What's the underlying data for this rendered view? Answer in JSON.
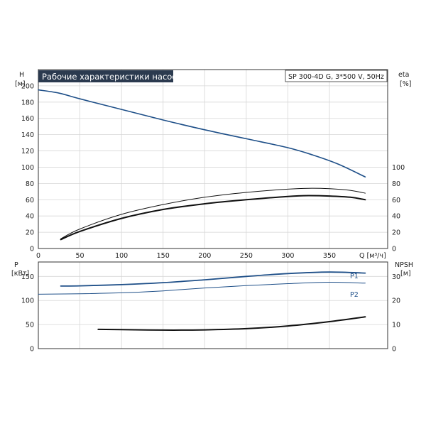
{
  "top_chart": {
    "title": "Рабочие характеристики насоса",
    "model": "SP 300-4D G, 3*500 V, 50Hz",
    "left_axis": {
      "label": "H",
      "unit": "[м]",
      "ticks": [
        0,
        20,
        40,
        60,
        80,
        100,
        120,
        140,
        160,
        180,
        200
      ]
    },
    "right_axis": {
      "label": "eta",
      "unit": "[%]",
      "ticks": [
        0,
        20,
        40,
        60,
        80,
        100
      ]
    },
    "x_axis": {
      "unit": "Q [м³/ч]",
      "ticks": [
        "0",
        "50",
        "100",
        "150",
        "200",
        "250",
        "300",
        "350"
      ]
    }
  },
  "bottom_chart": {
    "left_axis": {
      "label": "P",
      "unit": "[кВт]",
      "ticks": [
        0,
        50,
        100,
        150
      ]
    },
    "right_axis": {
      "label": "NPSH",
      "unit": "[м]",
      "ticks": [
        0,
        10,
        20,
        30
      ]
    },
    "series_labels": {
      "p1": "P1",
      "p2": "P2"
    }
  },
  "colors": {
    "blue": "#1e4f88",
    "dark": "#101010",
    "title_bg": "#2b3a4f",
    "grid": "#d6d6d6"
  },
  "chart_data": [
    {
      "type": "line",
      "title": "Рабочие характеристики насоса",
      "xlabel": "Q [м³/ч]",
      "ylabel": "H [м]",
      "y2label": "eta [%]",
      "xlim": [
        0,
        420
      ],
      "ylim": [
        0,
        220
      ],
      "series": [
        {
          "key": "H",
          "axis": "left",
          "color": "#1e4f88",
          "width": 1.6,
          "x": [
            0,
            25,
            50,
            100,
            150,
            200,
            250,
            300,
            330,
            360,
            393
          ],
          "y": [
            195,
            191,
            184,
            171,
            158,
            146,
            135,
            124,
            115,
            104,
            88
          ]
        },
        {
          "key": "eta_upper",
          "axis": "right",
          "color": "#101010",
          "width": 1.0,
          "x": [
            27,
            50,
            100,
            150,
            200,
            250,
            300,
            325,
            350,
            375,
            393
          ],
          "y": [
            12,
            24,
            42,
            54,
            63,
            69,
            73,
            74,
            73.5,
            71.5,
            68
          ]
        },
        {
          "key": "eta_lower",
          "axis": "right",
          "color": "#101010",
          "width": 2.0,
          "x": [
            27,
            50,
            100,
            150,
            200,
            250,
            300,
            325,
            350,
            375,
            393
          ],
          "y": [
            11,
            21,
            37,
            48,
            55,
            60,
            64,
            65,
            64.5,
            63,
            60
          ]
        }
      ]
    },
    {
      "type": "line",
      "xlabel": "Q [м³/ч]",
      "ylabel": "P [кВт]",
      "y2label": "NPSH [м]",
      "xlim": [
        0,
        420
      ],
      "ylim": [
        0,
        180
      ],
      "series": [
        {
          "key": "P1",
          "name": "P1",
          "axis": "left",
          "color": "#1e4f88",
          "width": 1.8,
          "x": [
            27,
            50,
            100,
            150,
            200,
            250,
            300,
            350,
            393
          ],
          "y": [
            130,
            130.5,
            133,
            137,
            143,
            150,
            156,
            159,
            157
          ]
        },
        {
          "key": "P2",
          "name": "P2",
          "axis": "left",
          "color": "#1e4f88",
          "width": 1.0,
          "x": [
            0,
            50,
            100,
            150,
            200,
            250,
            300,
            350,
            393
          ],
          "y": [
            113,
            114,
            116,
            120,
            126,
            131,
            135,
            138,
            136
          ]
        },
        {
          "key": "NPSH",
          "axis": "right",
          "color": "#101010",
          "width": 2.0,
          "x": [
            72,
            100,
            150,
            200,
            250,
            300,
            350,
            393
          ],
          "y": [
            8,
            7.9,
            7.7,
            7.8,
            8.3,
            9.4,
            11.2,
            13.2
          ]
        }
      ]
    }
  ]
}
